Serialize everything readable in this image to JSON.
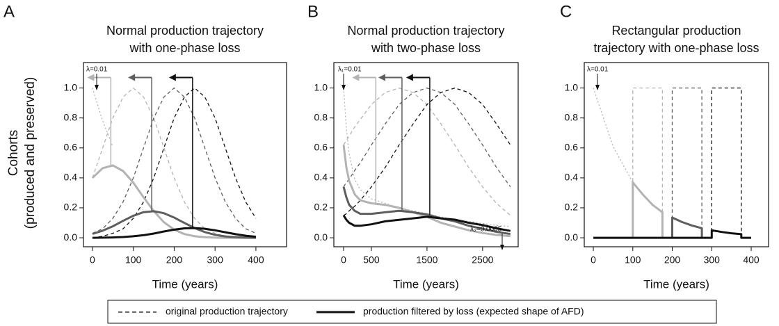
{
  "ylabel": [
    "Cohorts",
    "(produced and preserved)"
  ],
  "legend": [
    {
      "label": "original production trajectory",
      "line_style": "dashed"
    },
    {
      "label": "production filtered by loss (expected shape of AFD)",
      "line_style": "solid"
    }
  ],
  "chart_data": [
    {
      "type": "line",
      "panel": "A",
      "title": [
        "Normal production trajectory",
        "with one-phase loss"
      ],
      "xlabel": "Time (years)",
      "x": [
        0,
        25,
        50,
        75,
        100,
        125,
        150,
        175,
        200,
        225,
        250,
        275,
        300,
        325,
        350,
        375,
        400
      ],
      "xlim": [
        -22,
        475
      ],
      "xticks": [
        0,
        100,
        200,
        300,
        400
      ],
      "ylim": [
        -0.06,
        1.17
      ],
      "yticks": [
        {
          "value": 0,
          "label": "0.0"
        },
        0.2,
        0.4,
        0.6,
        0.8,
        {
          "value": 1,
          "label": "1.0"
        }
      ],
      "annotations": [
        "λ=0.01"
      ],
      "series": [
        {
          "color": "#b3b3b3",
          "line_style": "dashed",
          "values": [
            0.4,
            0.6,
            0.8,
            0.94,
            1,
            0.94,
            0.8,
            0.6,
            0.4,
            0.24,
            0.13,
            0.06,
            0.03,
            0.01,
            0,
            0,
            0
          ]
        },
        {
          "color": "#5e5e5e",
          "line_style": "dashed",
          "values": [
            0.03,
            0.06,
            0.13,
            0.24,
            0.4,
            0.6,
            0.8,
            0.94,
            1,
            0.94,
            0.8,
            0.6,
            0.4,
            0.24,
            0.13,
            0.06,
            0.03
          ]
        },
        {
          "color": "#111111",
          "line_style": "dashed",
          "values": [
            0,
            0.01,
            0.03,
            0.06,
            0.13,
            0.24,
            0.4,
            0.6,
            0.8,
            0.94,
            1,
            0.94,
            0.8,
            0.6,
            0.4,
            0.24,
            0.13
          ]
        },
        {
          "color": "#b3b3b3",
          "line_style": "dotted",
          "values": [
            1,
            0.78,
            0.61,
            null,
            null,
            null,
            null,
            null,
            null,
            null,
            null,
            null,
            null,
            null,
            null,
            null,
            null
          ]
        },
        {
          "color": "#b3b3b3",
          "line_style": "solid",
          "values": [
            0.4,
            0.465,
            0.483,
            0.446,
            0.368,
            0.27,
            0.178,
            0.104,
            0.054,
            0.025,
            0.01,
            0.004,
            0.001,
            0,
            0,
            0,
            0
          ]
        },
        {
          "color": "#5e5e5e",
          "line_style": "solid",
          "values": [
            0.026,
            0.047,
            0.077,
            0.113,
            0.147,
            0.171,
            0.177,
            0.164,
            0.135,
            0.099,
            0.065,
            0.038,
            0.02,
            0.009,
            0.004,
            0.001,
            0
          ]
        },
        {
          "color": "#111111",
          "line_style": "solid",
          "values": [
            0,
            0.001,
            0.002,
            0.005,
            0.01,
            0.017,
            0.028,
            0.042,
            0.054,
            0.063,
            0.065,
            0.06,
            0.05,
            0.037,
            0.024,
            0.014,
            0.007
          ]
        }
      ],
      "markers": [
        {
          "x": 45,
          "y": 0.48,
          "color": "#b3b3b3"
        },
        {
          "x": 145,
          "y": 0.18,
          "color": "#5e5e5e"
        },
        {
          "x": 245,
          "y": 0.065,
          "color": "#111111"
        }
      ]
    },
    {
      "type": "line",
      "panel": "B",
      "title": [
        "Normal production trajectory",
        "with two-phase loss"
      ],
      "xlabel": "Time (years)",
      "x": [
        0,
        50,
        100,
        200,
        300,
        500,
        750,
        1000,
        1250,
        1500,
        1750,
        2000,
        2250,
        2500,
        2750,
        3000
      ],
      "xlim": [
        -175,
        3140
      ],
      "xticks": [
        0,
        500,
        1500,
        2500
      ],
      "ylim": [
        -0.06,
        1.17
      ],
      "yticks": [
        {
          "value": 0,
          "label": "0.0"
        },
        0.2,
        0.4,
        0.6,
        0.8,
        {
          "value": 1,
          "label": "1.0"
        }
      ],
      "annotations": [
        "λ₁=0.01",
        "λ₂=0.0005"
      ],
      "series": [
        {
          "color": "#b3b3b3",
          "line_style": "dashed",
          "values": [
            0.62,
            0.65,
            0.68,
            0.74,
            0.79,
            0.89,
            0.97,
            1,
            0.97,
            0.89,
            0.76,
            0.62,
            0.47,
            0.34,
            0.23,
            0.15
          ]
        },
        {
          "color": "#5e5e5e",
          "line_style": "dashed",
          "values": [
            0.34,
            0.37,
            0.39,
            0.45,
            0.5,
            0.62,
            0.76,
            0.89,
            0.97,
            1,
            0.97,
            0.89,
            0.76,
            0.62,
            0.47,
            0.34
          ]
        },
        {
          "color": "#111111",
          "line_style": "dashed",
          "values": [
            0.15,
            0.16,
            0.18,
            0.21,
            0.25,
            0.34,
            0.47,
            0.62,
            0.76,
            0.89,
            0.97,
            1,
            0.97,
            0.89,
            0.76,
            0.62
          ]
        },
        {
          "color": "#b3b3b3",
          "line_style": "dotted",
          "values": [
            1,
            0.73,
            0.56,
            0.39,
            0.32,
            0.26,
            0.23,
            0.2,
            0.18,
            0.16,
            0.14,
            0.12,
            0.11,
            0.095,
            0.083,
            0.074
          ]
        },
        {
          "color": "#b3b3b3",
          "line_style": "solid",
          "values": [
            0.62,
            0.47,
            0.38,
            0.29,
            0.25,
            0.23,
            0.22,
            0.2,
            0.17,
            0.14,
            0.1,
            0.075,
            0.05,
            0.032,
            0.019,
            0.011
          ]
        },
        {
          "color": "#5e5e5e",
          "line_style": "solid",
          "values": [
            0.34,
            0.27,
            0.22,
            0.18,
            0.16,
            0.16,
            0.17,
            0.18,
            0.17,
            0.156,
            0.13,
            0.11,
            0.08,
            0.06,
            0.04,
            0.025
          ]
        },
        {
          "color": "#111111",
          "line_style": "solid",
          "values": [
            0.15,
            0.12,
            0.1,
            0.08,
            0.08,
            0.09,
            0.11,
            0.12,
            0.13,
            0.14,
            0.13,
            0.121,
            0.1,
            0.085,
            0.063,
            0.046
          ]
        }
      ],
      "markers": [
        {
          "x": 580,
          "y": 0.23,
          "color": "#b3b3b3"
        },
        {
          "x": 1050,
          "y": 0.18,
          "color": "#5e5e5e"
        },
        {
          "x": 1550,
          "y": 0.15,
          "color": "#111111"
        }
      ]
    },
    {
      "type": "line",
      "panel": "C",
      "title": [
        "Rectangular production",
        "trajectory with one-phase loss"
      ],
      "xlabel": "Time (years)",
      "x": [
        0,
        50,
        100,
        100,
        125,
        150,
        175,
        175,
        200,
        200,
        225,
        250,
        275,
        275,
        300,
        300,
        325,
        350,
        375,
        375,
        400
      ],
      "xlim": [
        -23,
        444
      ],
      "xticks": [
        0,
        100,
        200,
        300,
        400
      ],
      "ylim": [
        -0.06,
        1.17
      ],
      "yticks": [
        {
          "value": 0,
          "label": "0.0"
        },
        0.2,
        0.4,
        0.6,
        0.8,
        {
          "value": 1,
          "label": "1.0"
        }
      ],
      "annotations": [
        "λ=0.01"
      ],
      "series": [
        {
          "color": "#b3b3b3",
          "line_style": "dashed",
          "values": [
            null,
            null,
            0,
            1,
            1,
            1,
            1,
            0,
            null,
            null,
            null,
            null,
            null,
            null,
            null,
            null,
            null,
            null,
            null,
            null,
            null
          ]
        },
        {
          "color": "#5e5e5e",
          "line_style": "dashed",
          "values": [
            null,
            null,
            null,
            null,
            null,
            null,
            null,
            null,
            0,
            1,
            1,
            1,
            1,
            0,
            null,
            null,
            null,
            null,
            null,
            null,
            null
          ]
        },
        {
          "color": "#111111",
          "line_style": "dashed",
          "values": [
            null,
            null,
            null,
            null,
            null,
            null,
            null,
            null,
            null,
            null,
            null,
            null,
            null,
            null,
            0,
            1,
            1,
            1,
            1,
            0,
            null
          ]
        },
        {
          "color": "#b3b3b3",
          "line_style": "dotted",
          "values": [
            1,
            0.61,
            0.37,
            null,
            null,
            null,
            null,
            null,
            null,
            null,
            null,
            null,
            null,
            null,
            null,
            null,
            null,
            null,
            null,
            null,
            null
          ]
        },
        {
          "color": "#b3b3b3",
          "line_style": "solid",
          "values": [
            0,
            0,
            0,
            0.37,
            0.29,
            0.22,
            0.17,
            0,
            null,
            null,
            null,
            null,
            null,
            null,
            null,
            null,
            null,
            null,
            null,
            null,
            null
          ]
        },
        {
          "color": "#5e5e5e",
          "line_style": "solid",
          "values": [
            null,
            null,
            null,
            null,
            null,
            null,
            null,
            null,
            0,
            0.135,
            0.105,
            0.082,
            0.064,
            0,
            null,
            null,
            null,
            null,
            null,
            null,
            null
          ]
        },
        {
          "color": "#111111",
          "line_style": "solid",
          "values": [
            0,
            0,
            0,
            0,
            0,
            0,
            0,
            0,
            0,
            0,
            0,
            0,
            0,
            0,
            0,
            0.05,
            0.039,
            0.03,
            0.024,
            0,
            0
          ]
        }
      ],
      "markers": []
    }
  ]
}
